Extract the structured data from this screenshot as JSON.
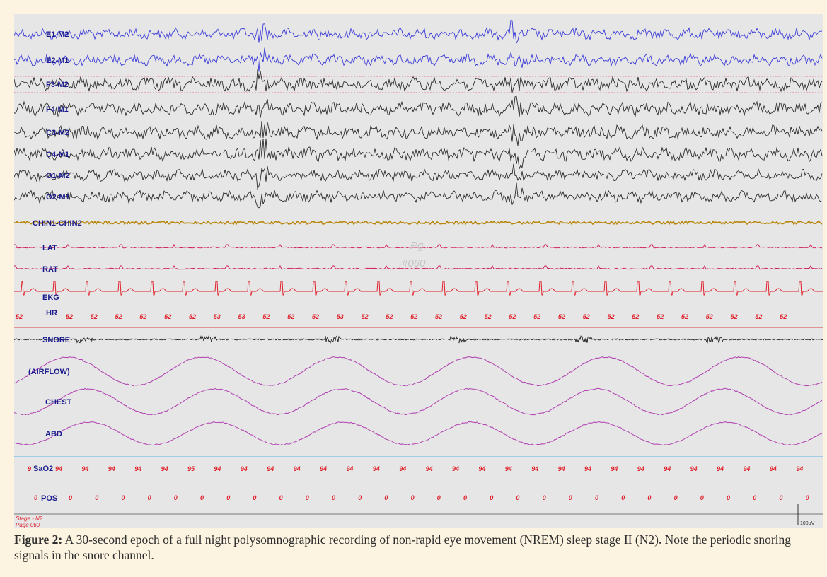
{
  "channels": [
    {
      "key": "e1",
      "label": "E1-M2",
      "color": "#3a3ad8"
    },
    {
      "key": "e2",
      "label": "E2-M1",
      "color": "#3a3ad8"
    },
    {
      "key": "f3",
      "label": "F3-M2",
      "color": "#2a2a2a"
    },
    {
      "key": "f4",
      "label": "F4-M1",
      "color": "#2a2a2a"
    },
    {
      "key": "c3",
      "label": "C3-M2",
      "color": "#2a2a2a"
    },
    {
      "key": "c4",
      "label": "C4-M1",
      "color": "#2a2a2a"
    },
    {
      "key": "o1",
      "label": "O1-M2",
      "color": "#2a2a2a"
    },
    {
      "key": "o2",
      "label": "O2-M1",
      "color": "#2a2a2a"
    },
    {
      "key": "chin",
      "label": "CHIN1-CHIN2",
      "color": "#b8860b"
    },
    {
      "key": "lat",
      "label": "LAT",
      "color": "#d01e5a"
    },
    {
      "key": "rat",
      "label": "RAT",
      "color": "#d01e5a"
    },
    {
      "key": "ekg",
      "label": "EKG",
      "color": "#e0202a"
    },
    {
      "key": "hr",
      "label": "HR",
      "color": "#e0202a"
    },
    {
      "key": "snore",
      "label": "SNORE",
      "color": "#111111"
    },
    {
      "key": "airflow",
      "label": "(AIRFLOW)",
      "color": "#b040b0"
    },
    {
      "key": "chest",
      "label": "CHEST",
      "color": "#b040b0"
    },
    {
      "key": "abd",
      "label": "ABD",
      "color": "#b040b0"
    },
    {
      "key": "sao2",
      "label": "SaO2",
      "color": "#e0202a"
    },
    {
      "key": "pos",
      "label": "POS",
      "color": "#e0202a"
    }
  ],
  "hr_values": [
    "52",
    "52",
    "52",
    "52",
    "52",
    "52",
    "52",
    "53",
    "53",
    "52",
    "52",
    "52",
    "53",
    "52",
    "52",
    "52",
    "52",
    "52",
    "52",
    "52",
    "52",
    "52",
    "52",
    "52",
    "52",
    "52",
    "52",
    "52",
    "52",
    "52",
    "52"
  ],
  "sao2_values": [
    "9",
    "94",
    "94",
    "94",
    "94",
    "94",
    "95",
    "94",
    "94",
    "94",
    "94",
    "94",
    "94",
    "94",
    "94",
    "94",
    "94",
    "94",
    "94",
    "94",
    "94",
    "94",
    "94",
    "94",
    "94",
    "94",
    "94",
    "94",
    "94",
    "94",
    "94"
  ],
  "pos_values": [
    "0",
    "0",
    "0",
    "0",
    "0",
    "0",
    "0",
    "0",
    "0",
    "0",
    "0",
    "0",
    "0",
    "0",
    "0",
    "0",
    "0",
    "0",
    "0",
    "0",
    "0",
    "0",
    "0",
    "0",
    "0",
    "0",
    "0",
    "0",
    "0",
    "0",
    "0",
    "0"
  ],
  "watermark_line1": "Pg",
  "watermark_line2": "#060",
  "stage_label": "Stage - N2",
  "page_label": "Page 060",
  "scale_label": "100μV",
  "caption_bold": "Figure 2:",
  "caption_text": " A 30-second epoch of a full night polysomnographic recording of non-rapid eye movement (NREM) sleep stage II (N2). Note the periodic snoring signals in the snore channel."
}
